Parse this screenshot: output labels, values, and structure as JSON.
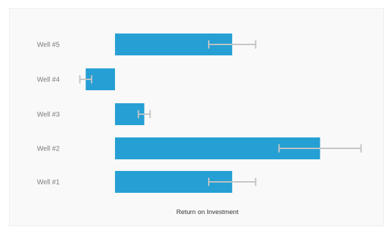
{
  "chart_data": {
    "type": "bar",
    "orientation": "horizontal",
    "title": "",
    "xlabel": "Return on Investment",
    "ylabel": "",
    "categories": [
      "Well #5",
      "Well #4",
      "Well #3",
      "Well #2",
      "Well #1"
    ],
    "values": [
      4,
      -1,
      1,
      7,
      4
    ],
    "error_bars": [
      {
        "low": 3.2,
        "high": 4.8
      },
      {
        "low": -1.2,
        "high": -0.8
      },
      {
        "low": 0.8,
        "high": 1.2
      },
      {
        "low": 5.6,
        "high": 8.4
      },
      {
        "low": 3.2,
        "high": 4.8
      }
    ],
    "xlim": [
      -1.5,
      8.8
    ],
    "grid": false,
    "legend": "none",
    "colors": {
      "bar": "#26a0d4",
      "error_bar": "#c4c4c4"
    }
  }
}
